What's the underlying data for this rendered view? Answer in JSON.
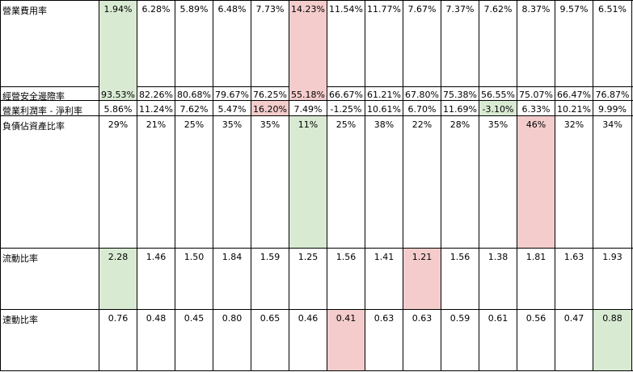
{
  "colors": {
    "good": "#d9ead3",
    "bad": "#f4cccc",
    "grid": "#000000"
  },
  "rows": [
    {
      "label": "營業費用率",
      "values": [
        "1.94%",
        "6.28%",
        "5.89%",
        "6.48%",
        "7.73%",
        "14.23%",
        "11.54%",
        "11.77%",
        "7.67%",
        "7.37%",
        "7.62%",
        "8.37%",
        "9.57%",
        "6.51%"
      ],
      "highlight": [
        "green",
        "",
        "",
        "",
        "",
        "red",
        "",
        "",
        "",
        "",
        "",
        "",
        "",
        ""
      ]
    },
    {
      "label": "經營安全邊際率",
      "values": [
        "93.53%",
        "82.26%",
        "80.68%",
        "79.67%",
        "76.25%",
        "55.18%",
        "66.67%",
        "61.21%",
        "67.80%",
        "75.38%",
        "56.55%",
        "75.07%",
        "66.47%",
        "76.87%"
      ],
      "highlight": [
        "green",
        "",
        "",
        "",
        "",
        "red",
        "",
        "",
        "",
        "",
        "",
        "",
        "",
        ""
      ]
    },
    {
      "label": "營業利潤率 - 淨利率",
      "values": [
        "5.86%",
        "11.24%",
        "7.62%",
        "5.47%",
        "16.20%",
        "7.49%",
        "-1.25%",
        "10.61%",
        "6.70%",
        "11.69%",
        "-3.10%",
        "6.33%",
        "10.21%",
        "9.99%"
      ],
      "highlight": [
        "",
        "",
        "",
        "",
        "red",
        "",
        "",
        "",
        "",
        "",
        "green",
        "",
        "",
        ""
      ]
    },
    {
      "label": "負債佔資產比率",
      "values": [
        "29%",
        "21%",
        "25%",
        "35%",
        "35%",
        "11%",
        "25%",
        "38%",
        "22%",
        "28%",
        "35%",
        "46%",
        "32%",
        "34%"
      ],
      "highlight": [
        "",
        "",
        "",
        "",
        "",
        "green",
        "",
        "",
        "",
        "",
        "",
        "red",
        "",
        ""
      ]
    },
    {
      "label": "流動比率",
      "values": [
        "2.28",
        "1.46",
        "1.50",
        "1.84",
        "1.59",
        "1.25",
        "1.56",
        "1.41",
        "1.21",
        "1.56",
        "1.38",
        "1.81",
        "1.63",
        "1.93"
      ],
      "highlight": [
        "green",
        "",
        "",
        "",
        "",
        "",
        "",
        "",
        "red",
        "",
        "",
        "",
        "",
        ""
      ]
    },
    {
      "label": "速動比率",
      "values": [
        "0.76",
        "0.48",
        "0.45",
        "0.80",
        "0.65",
        "0.46",
        "0.41",
        "0.63",
        "0.63",
        "0.59",
        "0.61",
        "0.56",
        "0.47",
        "0.88"
      ],
      "highlight": [
        "",
        "",
        "",
        "",
        "",
        "",
        "red",
        "",
        "",
        "",
        "",
        "",
        "",
        "green"
      ]
    }
  ]
}
